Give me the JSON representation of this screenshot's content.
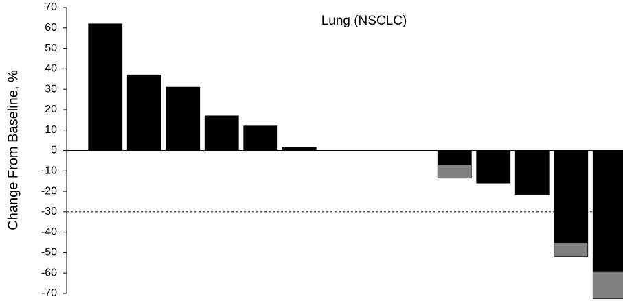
{
  "chart_data": {
    "type": "bar",
    "title": "Lung (NSCLC)",
    "y_label": "Change From Baseline, %",
    "categories": [
      null,
      null,
      null,
      null,
      null,
      null,
      null,
      null,
      null,
      null,
      null,
      null,
      null,
      null
    ],
    "series": [
      {
        "color": "#000000",
        "values": [
          62,
          37,
          31,
          17,
          12,
          1.5,
          0,
          0,
          0,
          -7,
          -16,
          -21.5,
          -45,
          -59
        ]
      },
      {
        "color": "#808080",
        "values": [
          null,
          null,
          null,
          null,
          null,
          null,
          null,
          null,
          null,
          -6.5,
          null,
          null,
          -7,
          -13.5
        ]
      }
    ],
    "stacked": true,
    "ylim": [
      -70,
      70
    ],
    "yticks": [
      -70,
      -60,
      -50,
      -40,
      -30,
      -20,
      -10,
      0,
      10,
      20,
      30,
      40,
      50,
      60,
      70
    ],
    "reference_lines": [
      {
        "value": -30,
        "style": "dashed"
      }
    ],
    "grid": false
  }
}
